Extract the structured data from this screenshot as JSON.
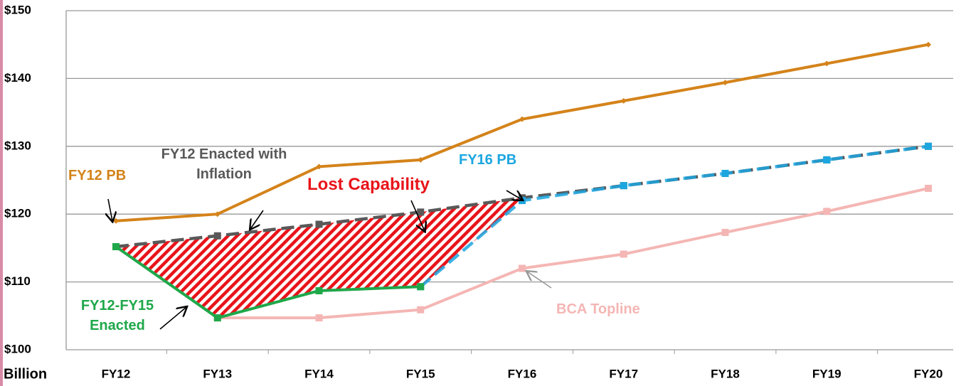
{
  "chart_data": {
    "type": "line",
    "y_label": "Billion",
    "categories": [
      "FY12",
      "FY13",
      "FY14",
      "FY15",
      "FY16",
      "FY17",
      "FY18",
      "FY19",
      "FY20"
    ],
    "ylim": [
      100,
      150
    ],
    "yticks": [
      {
        "value": 100,
        "label": "$100"
      },
      {
        "value": 110,
        "label": "$110"
      },
      {
        "value": 120,
        "label": "$120"
      },
      {
        "value": 130,
        "label": "$130"
      },
      {
        "value": 140,
        "label": "$140"
      },
      {
        "value": 150,
        "label": "$150"
      }
    ],
    "grid": true,
    "series": [
      {
        "name": "FY12 PB",
        "color": "#d4831a",
        "style": "solid",
        "values": [
          119,
          120,
          127,
          128,
          134,
          136.7,
          139.4,
          142.2,
          145
        ]
      },
      {
        "name": "FY12 Enacted with Inflation",
        "color": "#595959",
        "style": "dashed",
        "values": [
          115.2,
          116.8,
          118.5,
          120.3,
          122.4,
          124.2,
          126.0,
          128.0,
          130.0
        ]
      },
      {
        "name": "FY12-FY15 Enacted",
        "color": "#1fa84a",
        "style": "solid",
        "values": [
          115.2,
          104.7,
          108.7,
          109.3,
          null,
          null,
          null,
          null,
          null
        ]
      },
      {
        "name": "FY16 PB",
        "color": "#1ca6e0",
        "style": "dashed",
        "values": [
          null,
          null,
          null,
          109.3,
          122,
          124.2,
          126.0,
          128.0,
          130.0
        ]
      },
      {
        "name": "BCA Topline",
        "color": "#f4b6b4",
        "style": "solid",
        "values": [
          null,
          104.7,
          104.7,
          105.9,
          112,
          114.1,
          117.3,
          120.4,
          123.8
        ]
      }
    ],
    "annotations": [
      {
        "text": "Lost Capability",
        "color": "#e8141a"
      }
    ]
  }
}
